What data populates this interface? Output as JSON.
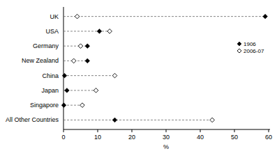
{
  "chart_data": {
    "type": "dot",
    "orientation": "horizontal",
    "x_label": "%",
    "categories": [
      "UK",
      "USA",
      "Germany",
      "New Zealand",
      "China",
      "Japan",
      "Singapore",
      "All Other Countries"
    ],
    "series": [
      {
        "name": "1906",
        "color": "#000000",
        "marker": "diamond",
        "values": [
          59,
          10.5,
          7,
          7,
          0.3,
          1,
          0.1,
          15
        ]
      },
      {
        "name": "2006-07",
        "color": "#000000",
        "marker": "diamond-open",
        "values": [
          4,
          13.5,
          5,
          3,
          15,
          9.5,
          5.5,
          43.5
        ]
      }
    ],
    "xlim": [
      0,
      60
    ],
    "xticks": [
      0,
      10,
      20,
      30,
      40,
      50,
      60
    ],
    "grid": false,
    "legend": "right"
  }
}
